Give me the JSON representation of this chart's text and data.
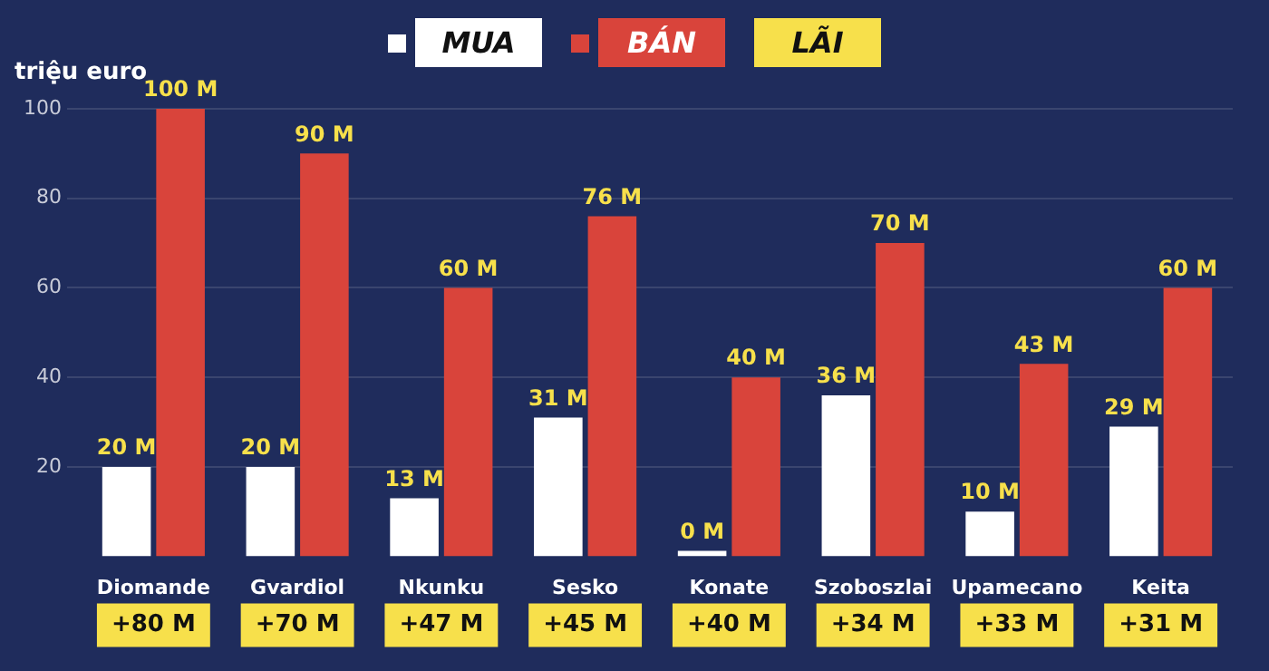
{
  "chart_data": {
    "type": "bar",
    "ylabel": "triệu euro",
    "categories": [
      "Diomande",
      "Gvardiol",
      "Nkunku",
      "Sesko",
      "Konate",
      "Szoboszlai",
      "Upamecano",
      "Keita"
    ],
    "series": [
      {
        "name": "MUA",
        "color": "#ffffff",
        "values": [
          20,
          20,
          13,
          31,
          0,
          36,
          10,
          29
        ],
        "value_labels": [
          "20 M",
          "20 M",
          "13 M",
          "31 M",
          "0 M",
          "36 M",
          "10 M",
          "29 M"
        ]
      },
      {
        "name": "BÁN",
        "color": "#d9443b",
        "values": [
          100,
          90,
          60,
          76,
          40,
          70,
          43,
          60
        ],
        "value_labels": [
          "100 M",
          "90 M",
          "60 M",
          "76 M",
          "40 M",
          "70 M",
          "43 M",
          "60 M"
        ]
      }
    ],
    "annotations": [
      "LÃI",
      "+80 M",
      "+70 M",
      "+47 M",
      "+45 M",
      "+40 M",
      "+34 M",
      "+33 M",
      "+31 M"
    ],
    "ylim": [
      0,
      100
    ],
    "yticks": [
      20,
      40,
      60,
      80,
      100
    ],
    "grid": "y",
    "legend": "top"
  }
}
